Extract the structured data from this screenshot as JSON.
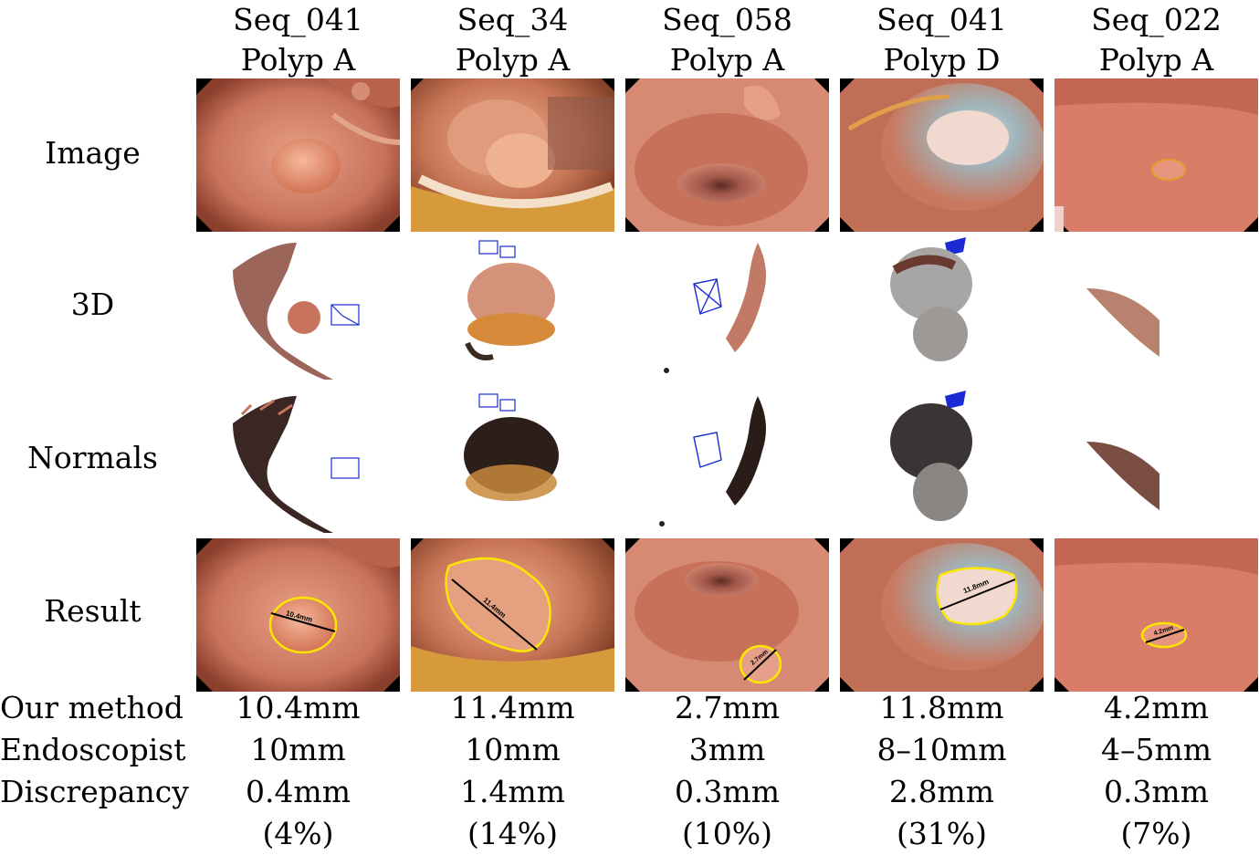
{
  "columns": [
    {
      "seq": "Seq_041",
      "polyp": "Polyp A",
      "measure": "10.4mm",
      "ours": "10.4mm",
      "endo": "10mm",
      "disc": "0.4mm",
      "pct": "(4%)"
    },
    {
      "seq": "Seq_34",
      "polyp": "Polyp A",
      "measure": "11.4mm",
      "ours": "11.4mm",
      "endo": "10mm",
      "disc": "1.4mm",
      "pct": "(14%)"
    },
    {
      "seq": "Seq_058",
      "polyp": "Polyp A",
      "measure": "2.7mm",
      "ours": "2.7mm",
      "endo": "3mm",
      "disc": "0.3mm",
      "pct": "(10%)"
    },
    {
      "seq": "Seq_041",
      "polyp": "Polyp D",
      "measure": "11.8mm",
      "ours": "11.8mm",
      "endo": "8–10mm",
      "disc": "2.8mm",
      "pct": "(31%)"
    },
    {
      "seq": "Seq_022",
      "polyp": "Polyp A",
      "measure": "4.2mm",
      "ours": "4.2mm",
      "endo": "4–5mm",
      "disc": "0.3mm",
      "pct": "(7%)"
    }
  ],
  "rows": {
    "image": "Image",
    "three_d": "3D",
    "normals": "Normals",
    "result": "Result"
  },
  "stat_labels": {
    "ours": "Our method",
    "endo": "Endoscopist",
    "disc": "Discrepancy"
  },
  "colors": {
    "tissue": "#c8735c",
    "outline": "#ffe600",
    "camera": "#1a2bd6"
  }
}
